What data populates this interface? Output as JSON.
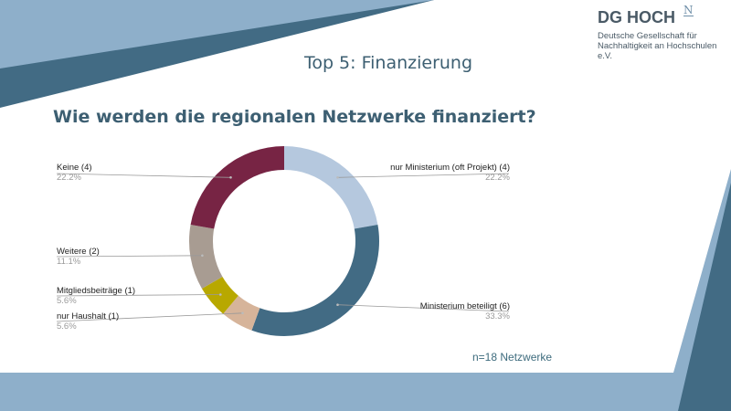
{
  "header": {
    "title": "Top 5: Finanzierung",
    "logo_text": "DG HOCH",
    "logo_superscript": "N",
    "logo_subtitle": "Deutsche Gesellschaft für Nachhaltigkeit an Hochschulen e.V."
  },
  "question": "Wie werden die regionalen Netzwerke finanziert?",
  "note": "n=18 Netzwerke",
  "colors": {
    "dark_blue": "#426b84",
    "light_blue": "#8eafca"
  },
  "chart_data": {
    "type": "pie",
    "donut": true,
    "title": "",
    "total": 18,
    "slices": [
      {
        "label": "nur Ministerium (oft Projekt) (4)",
        "value": 4,
        "percent": "22.2%",
        "color": "#b5c8de"
      },
      {
        "label": "Ministerium beteiligt (6)",
        "value": 6,
        "percent": "33.3%",
        "color": "#426b84"
      },
      {
        "label": "nur Haushalt (1)",
        "value": 1,
        "percent": "5.6%",
        "color": "#d6b49a"
      },
      {
        "label": "Mitgliedsbeiträge (1)",
        "value": 1,
        "percent": "5.6%",
        "color": "#b8a800"
      },
      {
        "label": "Weitere (2)",
        "value": 2,
        "percent": "11.1%",
        "color": "#a89c92"
      },
      {
        "label": "Keine (4)",
        "value": 4,
        "percent": "22.2%",
        "color": "#772444"
      }
    ],
    "legend": "callout labels"
  }
}
